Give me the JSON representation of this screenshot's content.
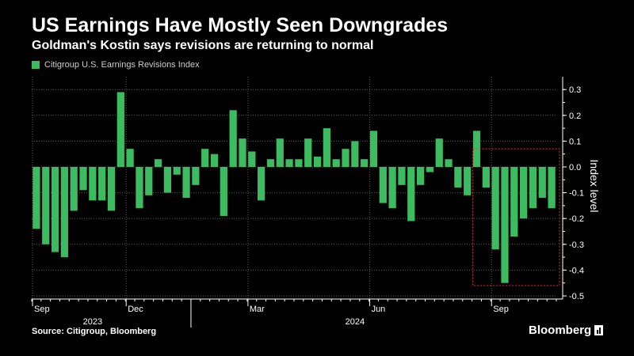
{
  "header": {
    "title": "US Earnings Have Mostly Seen Downgrades",
    "subtitle": "Goldman's Kostin says revisions are returning to normal"
  },
  "footer": {
    "source": "Source: Citigroup, Bloomberg",
    "brand": "Bloomberg"
  },
  "colors": {
    "bar": "#3dbb61",
    "grid": "#5a5a5a",
    "highlight": "#d9343f",
    "text": "#ffffff",
    "muted": "#cfcfcf"
  },
  "chart_data": {
    "type": "bar",
    "title": "US Earnings Have Mostly Seen Downgrades",
    "subtitle": "Goldman's Kostin says revisions are returning to normal",
    "ylabel": "Index level",
    "ylim": [
      -0.5,
      0.35
    ],
    "yticks": [
      0.3,
      0.2,
      0.1,
      0.0,
      -0.1,
      -0.2,
      -0.3,
      -0.4,
      -0.5
    ],
    "ytick_labels": [
      "0.3",
      "0.2",
      "0.1",
      "0.0",
      "-0.1",
      "-0.2",
      "-0.3",
      "-0.4",
      "-0.5"
    ],
    "y_axis_side": "right",
    "grid": true,
    "legend": "top-left",
    "series": [
      {
        "name": "Citigroup U.S. Earnings Revisions Index",
        "values": [
          -0.24,
          -0.3,
          -0.33,
          -0.35,
          -0.17,
          -0.09,
          -0.13,
          -0.13,
          -0.17,
          0.29,
          0.07,
          -0.16,
          -0.11,
          0.03,
          -0.1,
          -0.03,
          -0.12,
          -0.07,
          0.07,
          0.05,
          -0.19,
          0.22,
          0.11,
          0.06,
          -0.13,
          0.03,
          0.11,
          0.03,
          0.03,
          0.11,
          0.04,
          0.15,
          0.03,
          0.07,
          0.1,
          0.03,
          0.14,
          -0.14,
          -0.16,
          -0.07,
          -0.21,
          -0.07,
          -0.02,
          0.11,
          0.03,
          -0.08,
          -0.11,
          0.14,
          -0.08,
          -0.32,
          -0.45,
          -0.27,
          -0.2,
          -0.16,
          -0.12,
          -0.16
        ]
      }
    ],
    "x_ticks": [
      {
        "label": "Sep",
        "index": 0
      },
      {
        "label": "Dec",
        "index": 10
      },
      {
        "label": "Mar",
        "index": 23
      },
      {
        "label": "Jun",
        "index": 36
      },
      {
        "label": "Sep",
        "index": 49
      }
    ],
    "year_labels": [
      {
        "label": "2023",
        "index": 6
      },
      {
        "label": "2024",
        "index": 34
      }
    ],
    "highlight": {
      "start_index": 47,
      "end_index": 55,
      "y_top": 0.07,
      "y_bottom": -0.46
    }
  }
}
